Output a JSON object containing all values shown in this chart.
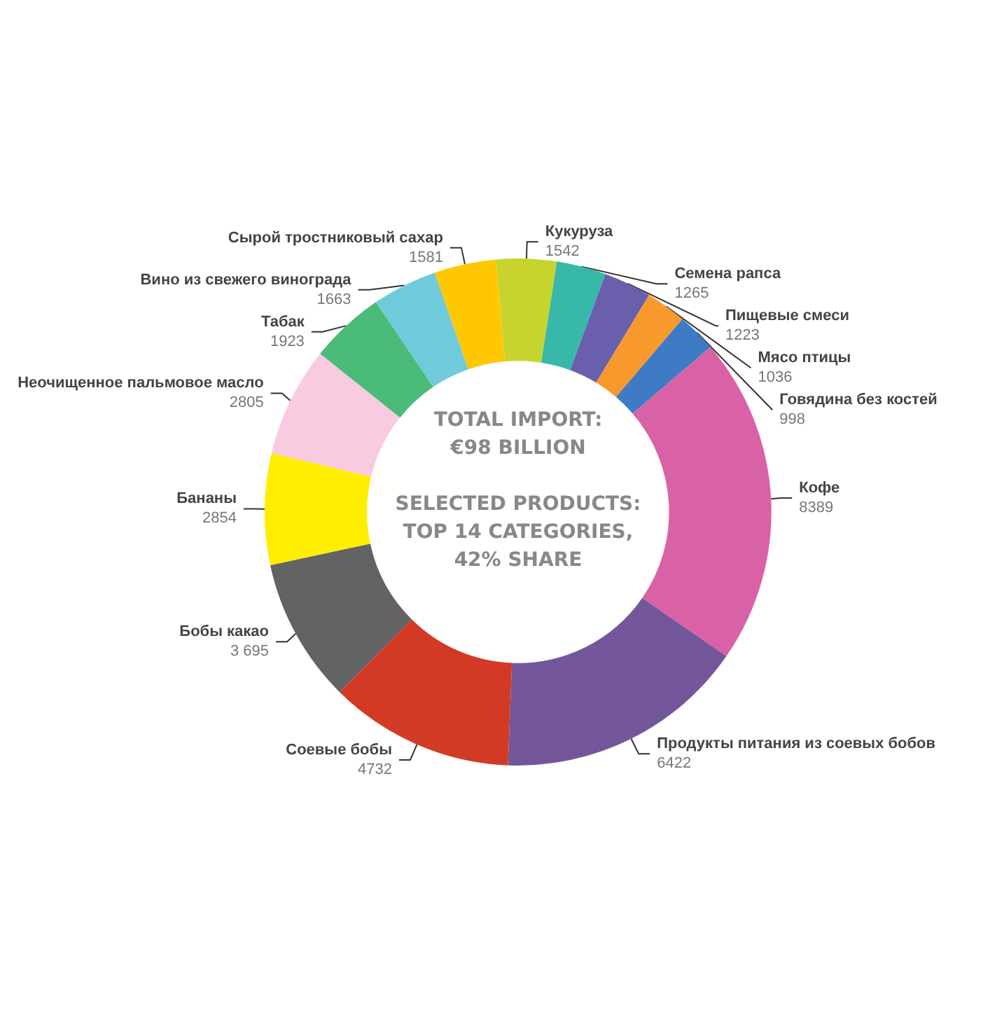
{
  "chart_data": {
    "type": "donut",
    "categories": [
      "Кукуруза",
      "Семена рапса",
      "Пищевые смеси",
      "Мясо птицы",
      "Говядина без костей",
      "Кофе",
      "Продукты питания из соевых бобов",
      "Соевые бобы",
      "Бобы какао",
      "Бананы",
      "Неочищенное пальмовое масло",
      "Табак",
      "Вино из свежего винограда",
      "Сырой тростниковый сахар"
    ],
    "values": [
      1542,
      1265,
      1223,
      1036,
      998,
      8389,
      6422,
      4732,
      3695,
      2854,
      2805,
      1923,
      1663,
      1581
    ],
    "value_labels": [
      "1542",
      "1265",
      "1223",
      "1036",
      "998",
      "8389",
      "6422",
      "4732",
      "3 695",
      "2854",
      "2805",
      "1923",
      "1663",
      "1581"
    ],
    "colors": [
      "#c8d42e",
      "#38b8a8",
      "#6a5fad",
      "#f79a2b",
      "#3f7bc4",
      "#d962a6",
      "#74579a",
      "#d33a26",
      "#636363",
      "#ffee00",
      "#f9cbe0",
      "#4bbb7a",
      "#6fcbdc",
      "#ffc800"
    ],
    "annotations": [
      "TOTAL IMPORT:",
      "€98 BILLION",
      "SELECTED PRODUCTS:",
      "TOP 14 CATEGORIES,",
      "42% SHARE"
    ],
    "legend": false
  }
}
